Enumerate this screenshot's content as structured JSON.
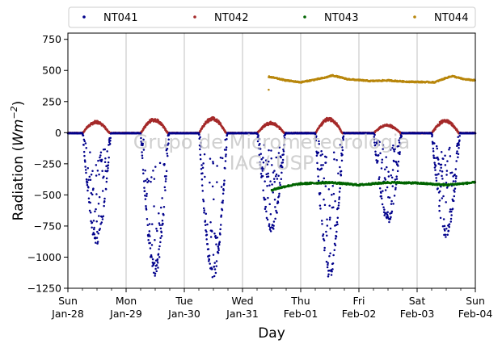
{
  "chart_data": {
    "type": "scatter",
    "title": "",
    "xlabel": "Day",
    "ylabel_text": "Radiation (",
    "ylabel_unit_base": "Wm",
    "ylabel_unit_exp": "−2",
    "ylabel_close": ")",
    "watermark_line1": "Grupo de Micrometeorologia",
    "watermark_line2": "IAG/ USP",
    "xlim": [
      0,
      7
    ],
    "ylim": [
      -1250,
      800
    ],
    "yticks": [
      800,
      750,
      500,
      250,
      0,
      -250,
      -500,
      -750,
      -1000,
      -1250
    ],
    "ytick_labels": [
      "",
      "750",
      "500",
      "250",
      "0",
      "−250",
      "−500",
      "−750",
      "−1000",
      "−1250"
    ],
    "xticks": [
      {
        "x": 0,
        "day": "Sun",
        "date": "Jan-28"
      },
      {
        "x": 1,
        "day": "Mon",
        "date": "Jan-29"
      },
      {
        "x": 2,
        "day": "Tue",
        "date": "Jan-30"
      },
      {
        "x": 3,
        "day": "Wed",
        "date": "Jan-31"
      },
      {
        "x": 4,
        "day": "Thu",
        "date": "Feb-01"
      },
      {
        "x": 5,
        "day": "Fri",
        "date": "Feb-02"
      },
      {
        "x": 6,
        "day": "Sat",
        "date": "Feb-03"
      },
      {
        "x": 7,
        "day": "Sun",
        "date": "Feb-04"
      }
    ],
    "grid": "x-only",
    "legend_position": "top",
    "series": [
      {
        "name": "NT041",
        "color": "#00008b",
        "days": [
          {
            "d": 0,
            "peak": -900,
            "spread": 0.55
          },
          {
            "d": 1,
            "peak": -1150,
            "spread": 0.35
          },
          {
            "d": 2,
            "peak": -1180,
            "spread": 0.35
          },
          {
            "d": 3,
            "peak": -800,
            "spread": 0.6
          },
          {
            "d": 4,
            "peak": -1170,
            "spread": 0.5
          },
          {
            "d": 5,
            "peak": -730,
            "spread": 0.7
          },
          {
            "d": 6,
            "peak": -850,
            "spread": 0.55
          }
        ]
      },
      {
        "name": "NT042",
        "color": "#a52a2a",
        "days": [
          {
            "d": 0,
            "peak": 100
          },
          {
            "d": 1,
            "peak": 120
          },
          {
            "d": 2,
            "peak": 130
          },
          {
            "d": 3,
            "peak": 90
          },
          {
            "d": 4,
            "peak": 125
          },
          {
            "d": 5,
            "peak": 70
          },
          {
            "d": 6,
            "peak": 110
          }
        ]
      },
      {
        "name": "NT043",
        "color": "#006400",
        "start": 3.5,
        "end": 7.0,
        "values": [
          {
            "x": 3.5,
            "y": -460
          },
          {
            "x": 3.75,
            "y": -430
          },
          {
            "x": 4.0,
            "y": -410
          },
          {
            "x": 4.5,
            "y": -400
          },
          {
            "x": 5.0,
            "y": -420
          },
          {
            "x": 5.5,
            "y": -400
          },
          {
            "x": 6.0,
            "y": -405
          },
          {
            "x": 6.5,
            "y": -420
          },
          {
            "x": 7.0,
            "y": -400
          }
        ]
      },
      {
        "name": "NT044",
        "color": "#b8860b",
        "start": 3.45,
        "end": 7.0,
        "values": [
          {
            "x": 3.45,
            "y": 450
          },
          {
            "x": 3.75,
            "y": 420
          },
          {
            "x": 4.0,
            "y": 405
          },
          {
            "x": 4.4,
            "y": 440
          },
          {
            "x": 4.55,
            "y": 460
          },
          {
            "x": 4.8,
            "y": 430
          },
          {
            "x": 5.2,
            "y": 415
          },
          {
            "x": 5.5,
            "y": 420
          },
          {
            "x": 5.8,
            "y": 410
          },
          {
            "x": 6.3,
            "y": 405
          },
          {
            "x": 6.5,
            "y": 440
          },
          {
            "x": 6.6,
            "y": 455
          },
          {
            "x": 6.8,
            "y": 430
          },
          {
            "x": 7.0,
            "y": 420
          }
        ],
        "outlier": {
          "x": 3.45,
          "y": 345
        }
      }
    ]
  }
}
